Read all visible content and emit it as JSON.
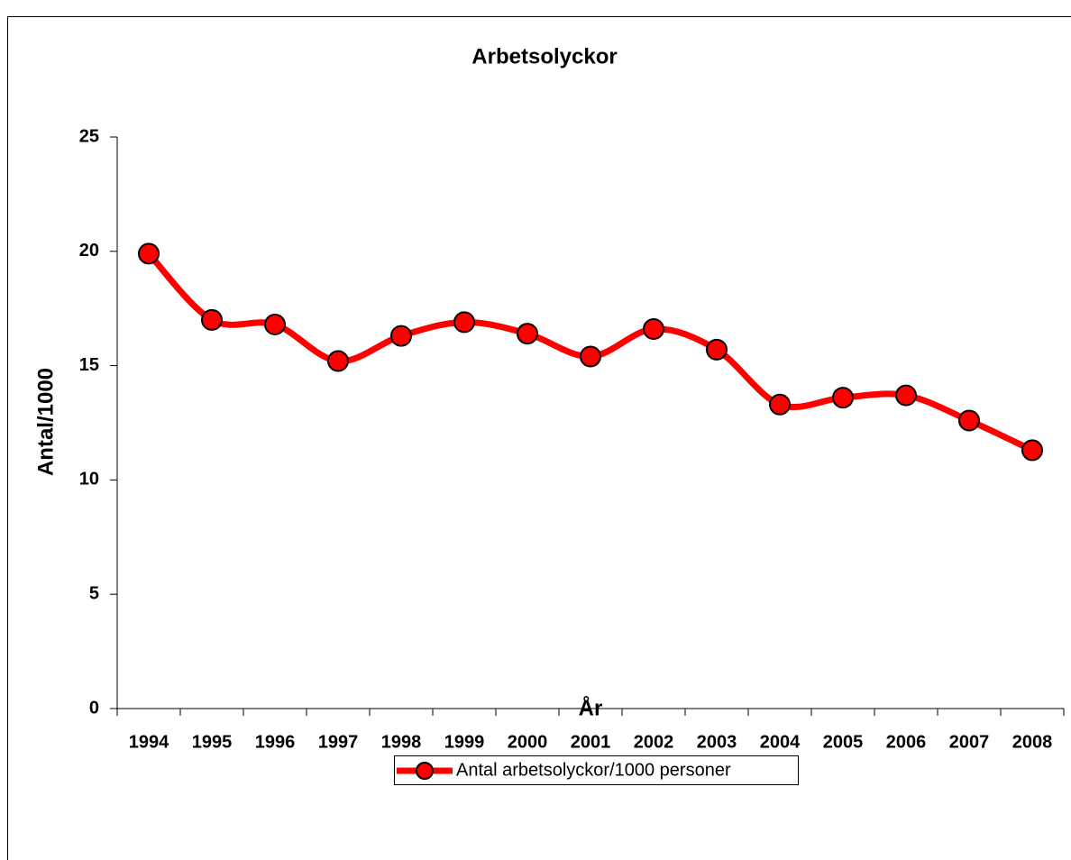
{
  "chart_data": {
    "type": "line",
    "title": "Arbetsolyckor",
    "x_label": "År",
    "y_label": "Antal/1000",
    "categories": [
      "1994",
      "1995",
      "1996",
      "1997",
      "1998",
      "1999",
      "2000",
      "2001",
      "2002",
      "2003",
      "2004",
      "2005",
      "2006",
      "2007",
      "2008"
    ],
    "series": [
      {
        "name": "Antal arbetsolyckor/1000 personer",
        "color": "#ff0000",
        "values": [
          19.9,
          17.0,
          16.8,
          15.2,
          16.3,
          16.9,
          16.4,
          15.4,
          16.6,
          15.7,
          13.3,
          13.6,
          13.7,
          12.6,
          11.3
        ]
      }
    ],
    "ylim": [
      0,
      25
    ],
    "yticks": [
      0,
      5,
      10,
      15,
      20,
      25
    ],
    "grid": false,
    "legend": "bottom",
    "smooth": true
  }
}
